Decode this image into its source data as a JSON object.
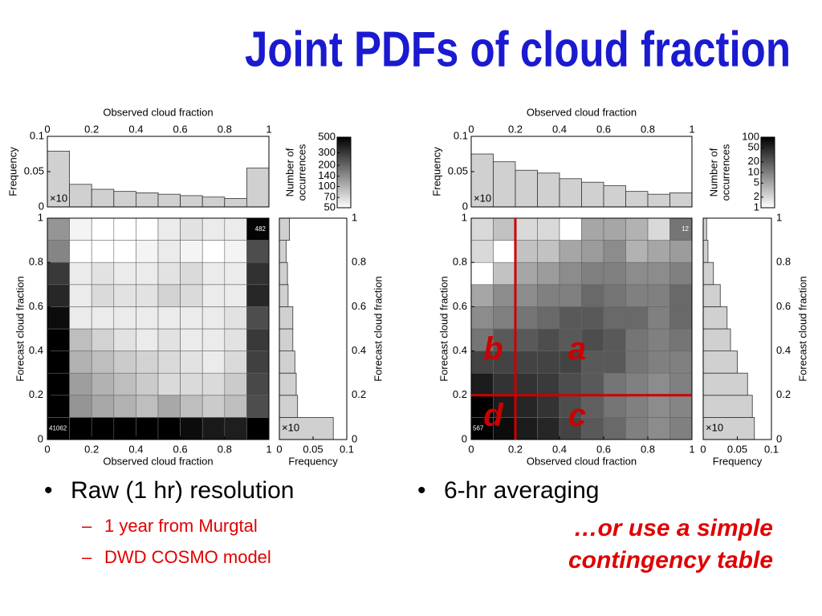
{
  "title": "Joint PDFs of cloud fraction",
  "left_bullets": {
    "main": "Raw (1 hr) resolution",
    "sub": [
      "1 year from Murgtal",
      "DWD COSMO model"
    ]
  },
  "right_bullets": {
    "main": "6-hr averaging",
    "note": [
      "…or use a simple",
      "contingency table"
    ]
  },
  "chart_data": [
    {
      "type": "heatmap",
      "x_label": "Observed cloud fraction",
      "y_label": "Forecast cloud fraction",
      "xlim": [
        0,
        1
      ],
      "ylim": [
        0,
        1
      ],
      "xticks": [
        0,
        0.2,
        0.4,
        0.6,
        0.8,
        1
      ],
      "yticks": [
        0,
        0.2,
        0.4,
        0.6,
        0.8,
        1
      ],
      "values": [
        [
          41062,
          800,
          700,
          650,
          600,
          500,
          450,
          400,
          380,
          1200
        ],
        [
          700,
          130,
          110,
          100,
          90,
          110,
          90,
          80,
          90,
          250
        ],
        [
          650,
          120,
          100,
          90,
          80,
          70,
          70,
          70,
          80,
          260
        ],
        [
          600,
          100,
          90,
          80,
          75,
          70,
          65,
          60,
          70,
          280
        ],
        [
          550,
          90,
          75,
          65,
          60,
          65,
          60,
          60,
          65,
          300
        ],
        [
          450,
          60,
          60,
          60,
          60,
          60,
          60,
          60,
          65,
          250
        ],
        [
          350,
          60,
          70,
          65,
          65,
          75,
          70,
          60,
          60,
          350
        ],
        [
          300,
          60,
          65,
          60,
          60,
          65,
          70,
          60,
          60,
          320
        ],
        [
          150,
          50,
          50,
          50,
          55,
          60,
          55,
          50,
          55,
          250
        ],
        [
          130,
          55,
          50,
          50,
          50,
          60,
          65,
          60,
          60,
          482
        ]
      ],
      "colormap": [
        "#ffffff",
        "#000000"
      ],
      "colorbar": {
        "label": [
          "Number of",
          "occurrences"
        ],
        "scale": "log",
        "lim": [
          50,
          500
        ],
        "ticks": [
          50,
          70,
          100,
          140,
          200,
          300,
          500
        ]
      },
      "x_marginal": {
        "label": "Frequency",
        "note": "×10",
        "color": "#d0d0d0",
        "ylim": [
          0,
          0.1
        ],
        "yticks": [
          0,
          0.05,
          0.1
        ],
        "values": [
          0.079,
          0.032,
          0.025,
          0.022,
          0.02,
          0.018,
          0.016,
          0.014,
          0.012,
          0.055
        ]
      },
      "y_marginal": {
        "label": "Frequency",
        "note": "×10",
        "color": "#d0d0d0",
        "xlim": [
          0,
          0.1
        ],
        "xticks": [
          0,
          0.05,
          0.1
        ],
        "values": [
          0.08,
          0.027,
          0.025,
          0.023,
          0.02,
          0.02,
          0.013,
          0.012,
          0.01,
          0.015
        ]
      }
    },
    {
      "type": "heatmap",
      "x_label": "Observed cloud fraction",
      "y_label": "Forecast cloud fraction",
      "xlim": [
        0,
        1
      ],
      "ylim": [
        0,
        1
      ],
      "xticks": [
        0,
        0.2,
        0.4,
        0.6,
        0.8,
        1
      ],
      "yticks": [
        0,
        0.2,
        0.4,
        0.6,
        0.8,
        1
      ],
      "values": [
        [
          567,
          80,
          60,
          50,
          30,
          20,
          15,
          10,
          8,
          10
        ],
        [
          100,
          60,
          50,
          40,
          25,
          18,
          12,
          10,
          8,
          9
        ],
        [
          60,
          40,
          40,
          35,
          25,
          20,
          12,
          10,
          8,
          10
        ],
        [
          30,
          30,
          30,
          30,
          30,
          20,
          20,
          12,
          10,
          10
        ],
        [
          12,
          20,
          20,
          25,
          20,
          25,
          20,
          12,
          10,
          12
        ],
        [
          8,
          10,
          12,
          15,
          20,
          20,
          15,
          15,
          10,
          15
        ],
        [
          5,
          8,
          8,
          10,
          10,
          15,
          12,
          10,
          10,
          15
        ],
        [
          1,
          3,
          5,
          6,
          8,
          10,
          10,
          8,
          8,
          10
        ],
        [
          2,
          1,
          3,
          3,
          5,
          6,
          8,
          4,
          5,
          6
        ],
        [
          2,
          3,
          2,
          2,
          1,
          5,
          5,
          4,
          2,
          12
        ]
      ],
      "colormap": [
        "#ffffff",
        "#000000"
      ],
      "colorbar": {
        "label": [
          "Number of",
          "occurrences"
        ],
        "scale": "log",
        "lim": [
          1,
          100
        ],
        "ticks": [
          1,
          2,
          5,
          10,
          20,
          50,
          100
        ]
      },
      "x_marginal": {
        "label": "Frequency",
        "note": "×10",
        "color": "#d0d0d0",
        "ylim": [
          0,
          0.1
        ],
        "yticks": [
          0,
          0.05,
          0.1
        ],
        "values": [
          0.075,
          0.064,
          0.052,
          0.048,
          0.04,
          0.035,
          0.03,
          0.022,
          0.018,
          0.02
        ]
      },
      "y_marginal": {
        "label": "Frequency",
        "note": "×10",
        "color": "#d0d0d0",
        "xlim": [
          0,
          0.1
        ],
        "xticks": [
          0,
          0.05,
          0.1
        ],
        "values": [
          0.075,
          0.072,
          0.065,
          0.05,
          0.04,
          0.035,
          0.025,
          0.015,
          0.007,
          0.005
        ]
      },
      "threshold": 0.2,
      "threshold_color": "#cc0000",
      "quadrant_labels": [
        "a",
        "b",
        "c",
        "d"
      ]
    }
  ]
}
